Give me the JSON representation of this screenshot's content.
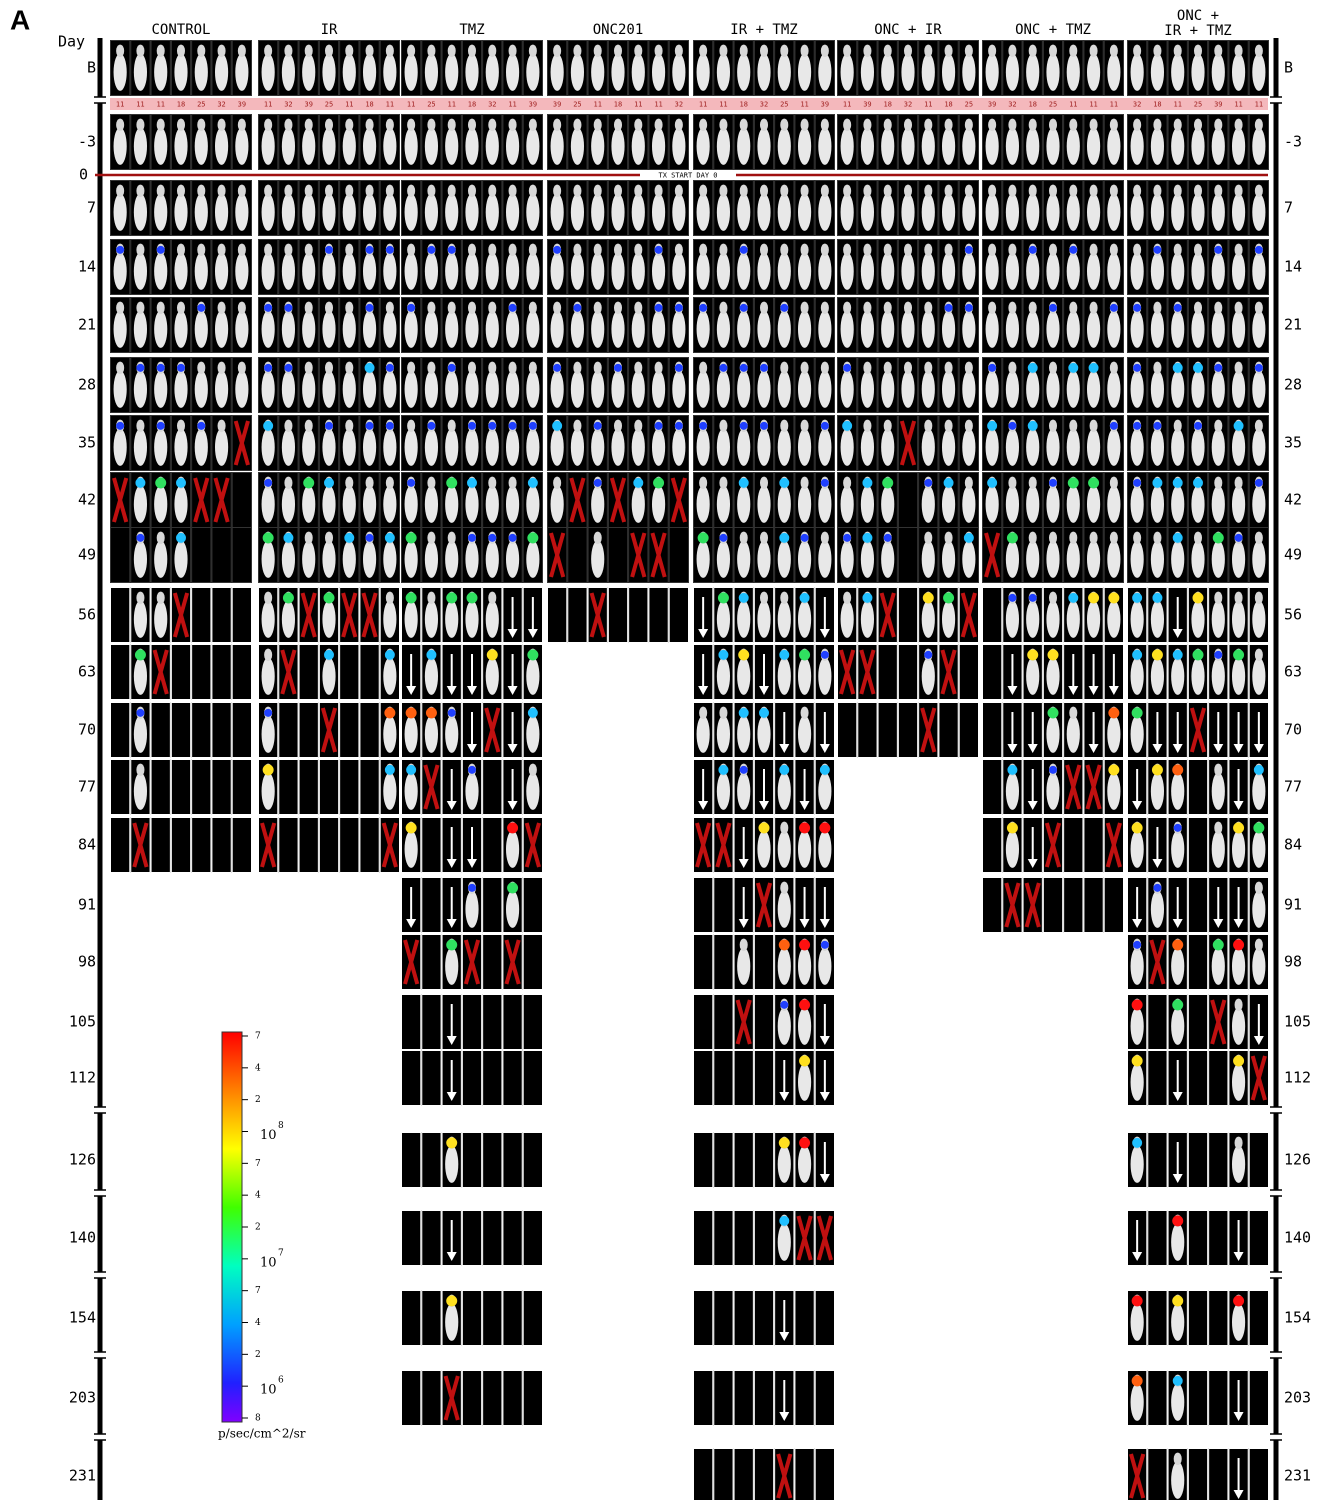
{
  "panel": "A",
  "day_header": "Day",
  "groups": [
    [
      "CONTROL"
    ],
    [
      "IR"
    ],
    [
      "TMZ"
    ],
    [
      "ONC201"
    ],
    [
      "IR + TMZ"
    ],
    [
      "ONC + IR"
    ],
    [
      "ONC + TMZ"
    ],
    [
      "ONC +",
      "IR + TMZ"
    ]
  ],
  "rows": [
    "B",
    "-3",
    "0",
    "7",
    "14",
    "21",
    "28",
    "35",
    "42",
    "49",
    "56",
    "63",
    "70",
    "77",
    "84",
    "91",
    "98",
    "105",
    "112",
    "126",
    "140",
    "154",
    "203",
    "231"
  ],
  "strip": [
    [
      11,
      11,
      11,
      18,
      25,
      32,
      39
    ],
    [
      11,
      32,
      39,
      25,
      11,
      18,
      11
    ],
    [
      11,
      25,
      11,
      18,
      32,
      11,
      39
    ],
    [
      39,
      25,
      11,
      18,
      11,
      11,
      32
    ],
    [
      11,
      11,
      18,
      32,
      25,
      11,
      39
    ],
    [
      11,
      39,
      18,
      32,
      11,
      18,
      25
    ],
    [
      39,
      32,
      18,
      25,
      11,
      11,
      11
    ],
    [
      32,
      18,
      11,
      25,
      39,
      11,
      11
    ]
  ],
  "treatment_line": "TX START DAY 0",
  "colorbar": {
    "ticks": [
      "7",
      "4",
      "2",
      {
        "text": "10",
        "sup": "8"
      },
      "7",
      "4",
      "2",
      {
        "text": "10",
        "sup": "7"
      },
      "7",
      "4",
      "2",
      {
        "text": "10",
        "sup": "6"
      },
      "8"
    ],
    "unit": "p/sec/cm^2/sr"
  }
}
